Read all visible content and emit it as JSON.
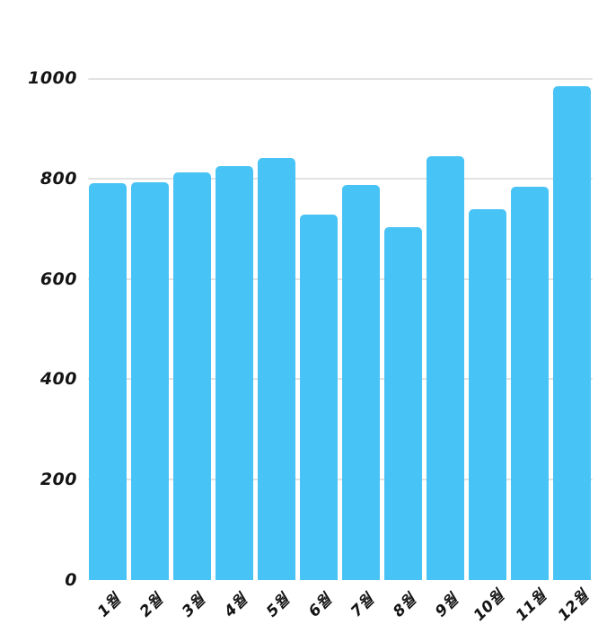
{
  "chart_data": {
    "type": "bar",
    "title": "",
    "xlabel": "",
    "ylabel": "",
    "categories": [
      "1월",
      "2월",
      "3월",
      "4월",
      "5월",
      "6월",
      "7월",
      "8월",
      "9월",
      "10월",
      "11월",
      "12월"
    ],
    "values": [
      790,
      793,
      812,
      825,
      840,
      729,
      787,
      703,
      844,
      738,
      783,
      984
    ],
    "ylim": [
      0,
      1000
    ],
    "yticks": [
      0,
      200,
      400,
      600,
      800,
      1000
    ],
    "grid": true,
    "legend": "none",
    "bar_color": "#48c3f5",
    "grid_color": "#e2e2e2",
    "text_color": "#141414",
    "background_color": "#ffffff"
  }
}
